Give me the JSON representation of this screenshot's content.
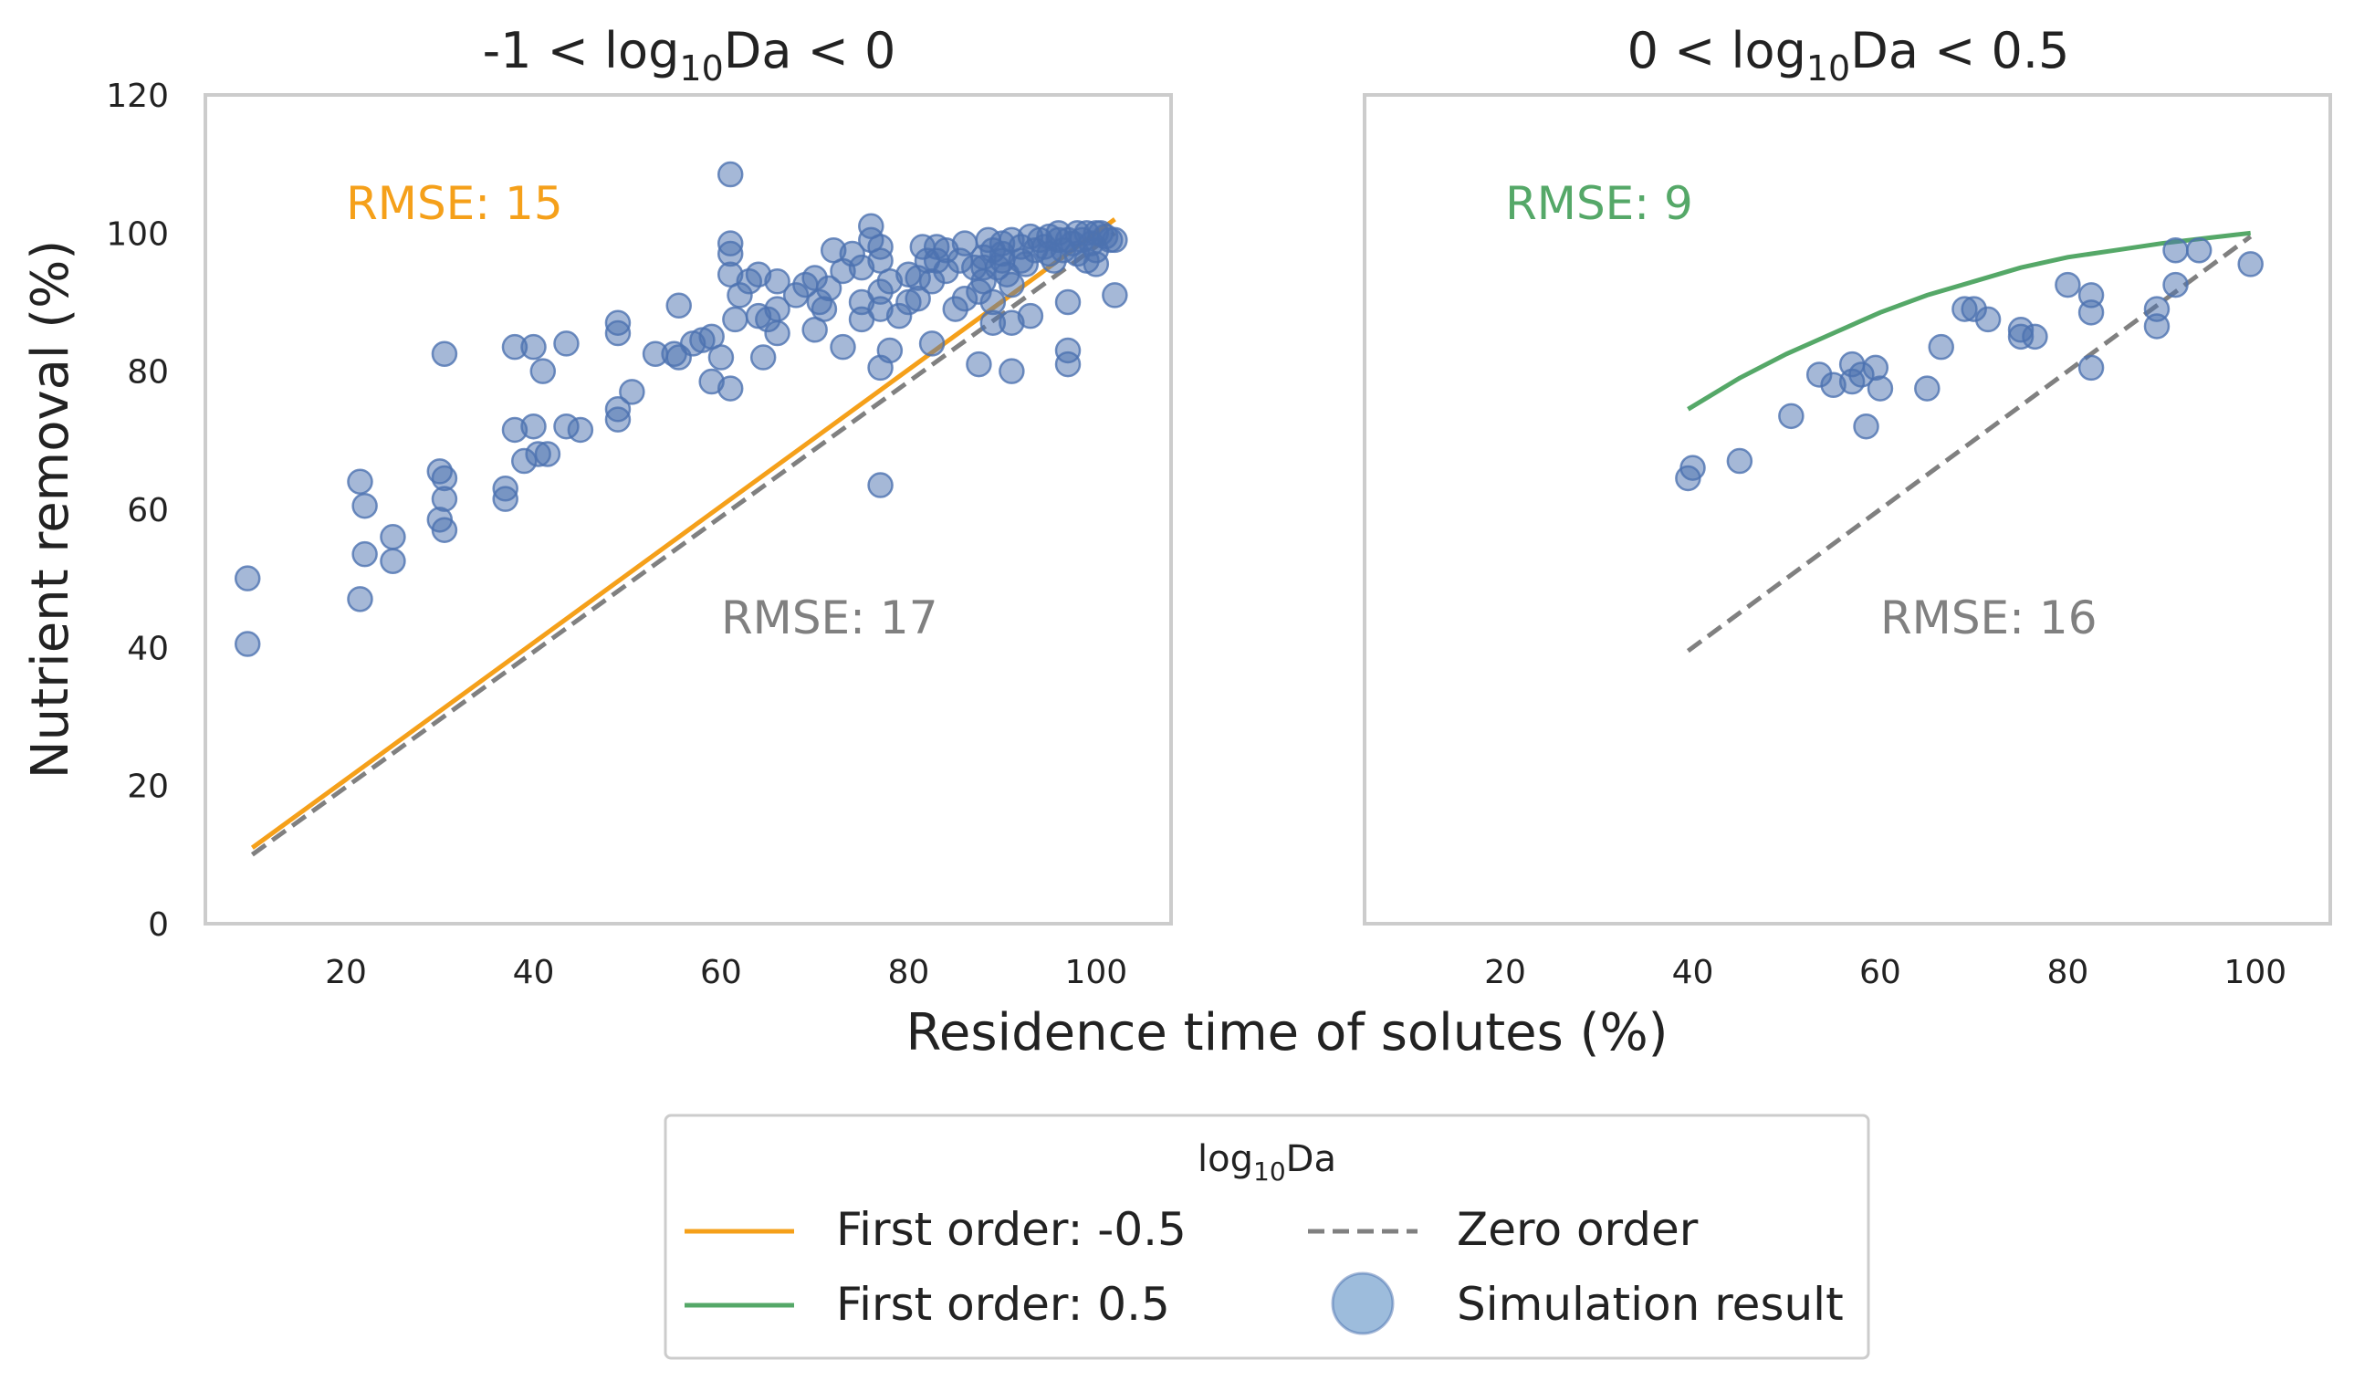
{
  "chart_data": {
    "type": "scatter",
    "panels": [
      {
        "title_prefix": "-1 < log",
        "title_sub": "10",
        "title_suffix": "Da < 0",
        "xlim": [
          5,
          108
        ],
        "ylim": [
          0,
          120
        ],
        "xticks": [
          20,
          40,
          60,
          80,
          100
        ],
        "yticks": [
          0,
          20,
          40,
          60,
          80,
          100,
          120
        ],
        "annotations": [
          {
            "text": "RMSE: 15",
            "x": 20,
            "y": 102,
            "color": "#f5a01a",
            "series": "first_order"
          },
          {
            "text": "RMSE: 17",
            "x": 60,
            "y": 42,
            "color": "#808080",
            "series": "zero_order"
          }
        ],
        "first_order": {
          "name": "First order: -0.5",
          "color": "#f5a01a",
          "x": [
            10,
            102
          ],
          "y": [
            11,
            102
          ]
        },
        "zero_order": {
          "name": "Zero order",
          "color": "#808080",
          "x": [
            10,
            102
          ],
          "y": [
            10,
            100
          ]
        },
        "simulation_points": [
          [
            9.5,
            50
          ],
          [
            9.5,
            40.5
          ],
          [
            21.5,
            64
          ],
          [
            22,
            60.5
          ],
          [
            22,
            53.5
          ],
          [
            21.5,
            47
          ],
          [
            25,
            56
          ],
          [
            25,
            52.5
          ],
          [
            30,
            65.5
          ],
          [
            30.5,
            64.5
          ],
          [
            30.5,
            61.5
          ],
          [
            30,
            58.5
          ],
          [
            30.5,
            57
          ],
          [
            30.5,
            82.5
          ],
          [
            38,
            71.5
          ],
          [
            39,
            67
          ],
          [
            40,
            72
          ],
          [
            40.5,
            68
          ],
          [
            41.5,
            68
          ],
          [
            38,
            83.5
          ],
          [
            40,
            83.5
          ],
          [
            41,
            80
          ],
          [
            43.5,
            84
          ],
          [
            43.5,
            72
          ],
          [
            45,
            71.5
          ],
          [
            37,
            63
          ],
          [
            37,
            61.5
          ],
          [
            49,
            87
          ],
          [
            49,
            85.5
          ],
          [
            49,
            74.5
          ],
          [
            49,
            73
          ],
          [
            50.5,
            77
          ],
          [
            53,
            82.5
          ],
          [
            55,
            82.5
          ],
          [
            55.5,
            82
          ],
          [
            55.5,
            89.5
          ],
          [
            57,
            84
          ],
          [
            58,
            84.5
          ],
          [
            59,
            85
          ],
          [
            60,
            82
          ],
          [
            59,
            78.5
          ],
          [
            61,
            108.5
          ],
          [
            61,
            98.5
          ],
          [
            61,
            97
          ],
          [
            61,
            94
          ],
          [
            61.5,
            87.5
          ],
          [
            61,
            77.5
          ],
          [
            62,
            91
          ],
          [
            63,
            93
          ],
          [
            64,
            94
          ],
          [
            64,
            88
          ],
          [
            64.5,
            82
          ],
          [
            65,
            87.5
          ],
          [
            66,
            93
          ],
          [
            66,
            89
          ],
          [
            66,
            85.5
          ],
          [
            68,
            91
          ],
          [
            69,
            92.5
          ],
          [
            70,
            93.5
          ],
          [
            70,
            86
          ],
          [
            70.5,
            90
          ],
          [
            71,
            89
          ],
          [
            71.5,
            92
          ],
          [
            72,
            97.5
          ],
          [
            73,
            94.5
          ],
          [
            73,
            83.5
          ],
          [
            74,
            97
          ],
          [
            75,
            90
          ],
          [
            75,
            87.5
          ],
          [
            76,
            101
          ],
          [
            76,
            99
          ],
          [
            77,
            98
          ],
          [
            77,
            96
          ],
          [
            77,
            91.5
          ],
          [
            77,
            89
          ],
          [
            77,
            80.5
          ],
          [
            77,
            63.5
          ],
          [
            78,
            93
          ],
          [
            78,
            83
          ],
          [
            80,
            94
          ],
          [
            80,
            90
          ],
          [
            81,
            93.5
          ],
          [
            81,
            90.5
          ],
          [
            81.5,
            98
          ],
          [
            82,
            96
          ],
          [
            82.5,
            93
          ],
          [
            82.5,
            84
          ],
          [
            83,
            98
          ],
          [
            83,
            96
          ],
          [
            84,
            97.5
          ],
          [
            84,
            94.5
          ],
          [
            85,
            89
          ],
          [
            85.5,
            96
          ],
          [
            86,
            98.5
          ],
          [
            87,
            95
          ],
          [
            87.5,
            91.5
          ],
          [
            87.5,
            81
          ],
          [
            88,
            96.5
          ],
          [
            88,
            93
          ],
          [
            88.5,
            99
          ],
          [
            89,
            97.5
          ],
          [
            89,
            90
          ],
          [
            89,
            87
          ],
          [
            90,
            98.5
          ],
          [
            90,
            96
          ],
          [
            90.5,
            94
          ],
          [
            91,
            92.5
          ],
          [
            91,
            87
          ],
          [
            91,
            80
          ],
          [
            92,
            96
          ],
          [
            92,
            98
          ],
          [
            92.5,
            95.5
          ],
          [
            93,
            88
          ],
          [
            93.5,
            97.5
          ],
          [
            94,
            99
          ],
          [
            94.5,
            98
          ],
          [
            95,
            97
          ],
          [
            95,
            99.5
          ],
          [
            95.5,
            96
          ],
          [
            96,
            99
          ],
          [
            96,
            100
          ],
          [
            96.5,
            97.5
          ],
          [
            97,
            99
          ],
          [
            97,
            90
          ],
          [
            97,
            83
          ],
          [
            97,
            81
          ],
          [
            97.5,
            98.5
          ],
          [
            98,
            100
          ],
          [
            98,
            97
          ],
          [
            98.5,
            99
          ],
          [
            99,
            100
          ],
          [
            99,
            96
          ],
          [
            99.5,
            98.5
          ],
          [
            100,
            100
          ],
          [
            100,
            97.5
          ],
          [
            100.5,
            100
          ],
          [
            101,
            99.5
          ],
          [
            101.5,
            99
          ],
          [
            102,
            99
          ],
          [
            102,
            91
          ],
          [
            93,
            99.5
          ],
          [
            91,
            99
          ],
          [
            90,
            97
          ],
          [
            89.5,
            95
          ],
          [
            100,
            95.5
          ],
          [
            75,
            95
          ],
          [
            79,
            88
          ],
          [
            86,
            90.5
          ],
          [
            88,
            95
          ]
        ]
      },
      {
        "title_prefix": "0 < log",
        "title_sub": "10",
        "title_suffix": "Da < 0.5",
        "xlim": [
          5,
          108
        ],
        "ylim": [
          0,
          120
        ],
        "xticks": [
          20,
          40,
          60,
          80,
          100
        ],
        "yticks": [],
        "annotations": [
          {
            "text": "RMSE: 9",
            "x": 20,
            "y": 102,
            "color": "#55a868",
            "series": "first_order"
          },
          {
            "text": "RMSE: 16",
            "x": 60,
            "y": 42,
            "color": "#808080",
            "series": "zero_order"
          }
        ],
        "first_order": {
          "name": "First order: 0.5",
          "color": "#55a868",
          "x": [
            39.5,
            45,
            50,
            55,
            60,
            65,
            70,
            75,
            80,
            85,
            90,
            95,
            99.5
          ],
          "y": [
            74.5,
            79,
            82.5,
            85.5,
            88.5,
            91,
            93,
            95,
            96.5,
            97.5,
            98.5,
            99.3,
            100
          ]
        },
        "zero_order": {
          "name": "Zero order",
          "color": "#808080",
          "x": [
            39.5,
            99.5
          ],
          "y": [
            39.5,
            99.5
          ]
        },
        "simulation_points": [
          [
            39.5,
            64.5
          ],
          [
            40,
            66
          ],
          [
            45,
            67
          ],
          [
            50.5,
            73.5
          ],
          [
            53.5,
            79.5
          ],
          [
            55,
            78
          ],
          [
            57,
            81
          ],
          [
            57,
            78.5
          ],
          [
            58,
            79.5
          ],
          [
            58.5,
            72
          ],
          [
            59.5,
            80.5
          ],
          [
            60,
            77.5
          ],
          [
            65,
            77.5
          ],
          [
            66.5,
            83.5
          ],
          [
            69,
            89
          ],
          [
            70,
            89
          ],
          [
            71.5,
            87.5
          ],
          [
            75,
            85
          ],
          [
            75,
            86
          ],
          [
            76.5,
            85
          ],
          [
            80,
            92.5
          ],
          [
            82.5,
            91
          ],
          [
            82.5,
            88.5
          ],
          [
            82.5,
            80.5
          ],
          [
            89.5,
            89
          ],
          [
            89.5,
            86.5
          ],
          [
            91.5,
            92.5
          ],
          [
            91.5,
            97.5
          ],
          [
            94,
            97.5
          ],
          [
            99.5,
            95.5
          ]
        ]
      }
    ],
    "xlabel": "Residence time of solutes (%)",
    "ylabel": "Nutrient removal (%)",
    "point_color": "#4c72b0",
    "legend": {
      "title_prefix": "log",
      "title_sub": "10",
      "title_suffix": "Da",
      "placement": "bottom-center",
      "entries": [
        {
          "label": "First order: -0.5",
          "kind": "line",
          "color": "#f5a01a"
        },
        {
          "label": "Zero order",
          "kind": "dashed",
          "color": "#808080"
        },
        {
          "label": "First order: 0.5",
          "kind": "line",
          "color": "#55a868"
        },
        {
          "label": "Simulation result",
          "kind": "marker",
          "color": "#4c72b0"
        }
      ]
    },
    "grid": false
  }
}
